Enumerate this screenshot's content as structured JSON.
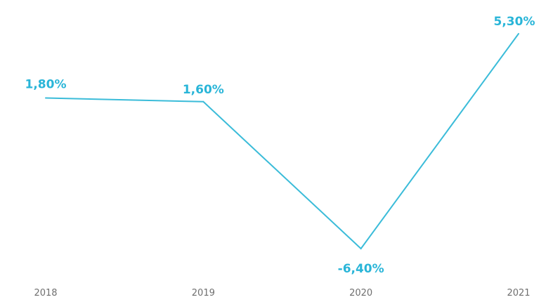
{
  "chart_data": {
    "type": "line",
    "categories": [
      "2018",
      "2019",
      "2020",
      "2021"
    ],
    "series": [
      {
        "values": [
          1.8,
          1.6,
          -6.4,
          5.3
        ],
        "labels": [
          "1,80%",
          "1,60%",
          "-6,40%",
          "5,30%"
        ]
      }
    ],
    "ylim": [
      -6.4,
      5.3
    ],
    "grid": false,
    "legend": "none"
  },
  "colors": {
    "line": "#3bbcd9",
    "label": "#29b5d8",
    "tick": "#6f6f6f"
  }
}
